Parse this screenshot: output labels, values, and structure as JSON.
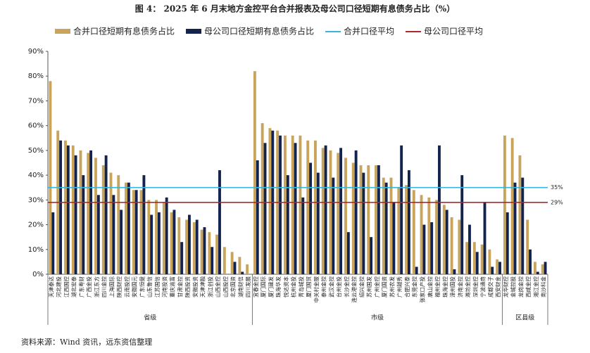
{
  "chart_data": {
    "type": "bar",
    "title": "图 4：  2025 年 6 月末地方金控平台合并报表及母公司口径短期有息债务占比（%）",
    "source": "资料来源：Wind 资讯，远东资信整理",
    "groups": [
      {
        "label": "省级",
        "categories": [
          "天津泰达",
          "河北建投",
          "江西国控",
          "湖北宏泰",
          "广东粤财",
          "广西金投",
          "浙江东方",
          "四川金控",
          "上海国际",
          "陕西财控",
          "云南投控",
          "安徽国元",
          "广东恒健",
          "山东鲁信",
          "江苏国信",
          "河南投资",
          "重庆渝富",
          "甘肃金控",
          "陕西投资",
          "安徽投资",
          "天津津融",
          "浙江创投",
          "山西金控",
          "山西投控",
          "北京国资",
          "湖南财信",
          "四川发展"
        ]
      },
      {
        "label": "市级",
        "categories": [
          "宜春金控",
          "厦门国际",
          "厦门建发",
          "珠海华发",
          "悦达资本",
          "杭州金投",
          "青岛城投",
          "厦门国贸",
          "中关村金服",
          "泰州金控",
          "武汉金控",
          "台州金投",
          "长沙金控",
          "连云港金控",
          "绍兴金控",
          "苏州国发",
          "广州金控",
          "厦门国资",
          "苏州农发",
          "广州越秀",
          "合肥兴泰",
          "东莞金控",
          "张家口产投",
          "唐山金控",
          "福州金控",
          "珠海金控",
          "漳州国投",
          "济南金控",
          "潍坊金控",
          "深圳金控",
          "宁波通商",
          "成都交子",
          "西安财金"
        ]
      },
      {
        "label": "区县级",
        "categories": [
          "龙华财控",
          "金城控股",
          "龙岗金控",
          "西咸金控",
          "湘江金控",
          "南沙科金"
        ]
      }
    ],
    "series": [
      {
        "name": "合并口径短期有息债务占比",
        "color": "#c9a45c",
        "values": [
          78,
          58,
          54,
          52,
          50,
          49,
          47,
          44,
          41,
          40,
          37,
          34,
          34,
          30,
          30,
          29,
          25,
          23,
          22,
          21,
          18,
          17,
          16,
          11,
          9,
          7,
          4,
          82,
          61,
          59,
          58,
          56,
          56,
          56,
          54,
          54,
          51,
          50,
          49,
          47,
          45,
          44,
          44,
          44,
          39,
          39,
          35,
          36,
          34,
          32,
          31,
          30,
          28,
          23,
          22,
          13,
          13,
          12,
          10,
          6,
          56,
          55,
          48,
          22,
          5,
          4
        ]
      },
      {
        "name": "母公司口径短期有息债务占比",
        "color": "#12234f",
        "values": [
          25,
          54,
          52,
          48,
          40,
          50,
          32,
          48,
          32,
          26,
          37,
          34,
          40,
          24,
          25,
          31,
          26,
          13,
          24,
          22,
          19,
          11,
          42,
          0,
          5,
          1,
          0,
          46,
          53,
          58,
          56,
          40,
          53,
          31,
          45,
          41,
          52,
          39,
          51,
          17,
          50,
          41,
          15,
          44,
          37,
          29,
          52,
          42,
          3,
          20,
          21,
          52,
          26,
          2,
          40,
          20,
          9,
          29,
          3,
          5,
          25,
          37,
          39,
          10,
          1,
          5
        ]
      }
    ],
    "reference_lines": [
      {
        "name": "合并口径平均",
        "color": "#36b5de",
        "value": 35,
        "value_label": "35%"
      },
      {
        "name": "母公司口径平均",
        "color": "#b0282c",
        "value": 29,
        "value_label": "29%"
      }
    ],
    "ylim": [
      0,
      90
    ],
    "yticks": [
      {
        "value": 0,
        "label": "0%"
      },
      {
        "value": 10,
        "label": "10%"
      },
      {
        "value": 20,
        "label": "20%"
      },
      {
        "value": 30,
        "label": "30%"
      },
      {
        "value": 40,
        "label": "40%"
      },
      {
        "value": 50,
        "label": "50%"
      },
      {
        "value": 60,
        "label": "60%"
      },
      {
        "value": 70,
        "label": "70%"
      },
      {
        "value": 80,
        "label": "80%"
      },
      {
        "value": 90,
        "label": "90%"
      }
    ]
  }
}
